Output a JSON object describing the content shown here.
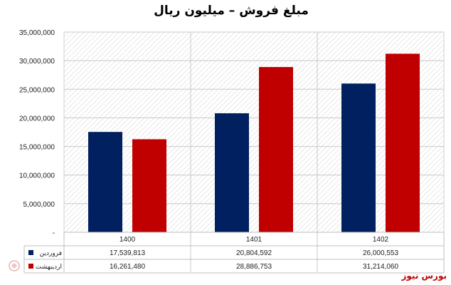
{
  "brand": {
    "name": "بورس نیوز",
    "color": "#c00000"
  },
  "chart_data": {
    "type": "bar",
    "title": "مبلغ فروش – میلیون ریال",
    "categories": [
      "1400",
      "1401",
      "1402"
    ],
    "series": [
      {
        "name": "فروردین",
        "values": [
          17539813,
          20804592,
          26000553
        ],
        "display": [
          "17,539,813",
          "20,804,592",
          "26,000,553"
        ],
        "color": "#002060"
      },
      {
        "name": "اردیبهشت",
        "values": [
          16261480,
          28886753,
          31214060
        ],
        "display": [
          "16,261,480",
          "28,886,753",
          "31,214,060"
        ],
        "color": "#c00000"
      }
    ],
    "ylim": [
      0,
      35000000
    ],
    "yticks": [
      "-",
      "5,000,000",
      "10,000,000",
      "15,000,000",
      "20,000,000",
      "25,000,000",
      "30,000,000",
      "35,000,000"
    ],
    "grid": true,
    "plot_background": "hatched",
    "legend": "data-table"
  }
}
